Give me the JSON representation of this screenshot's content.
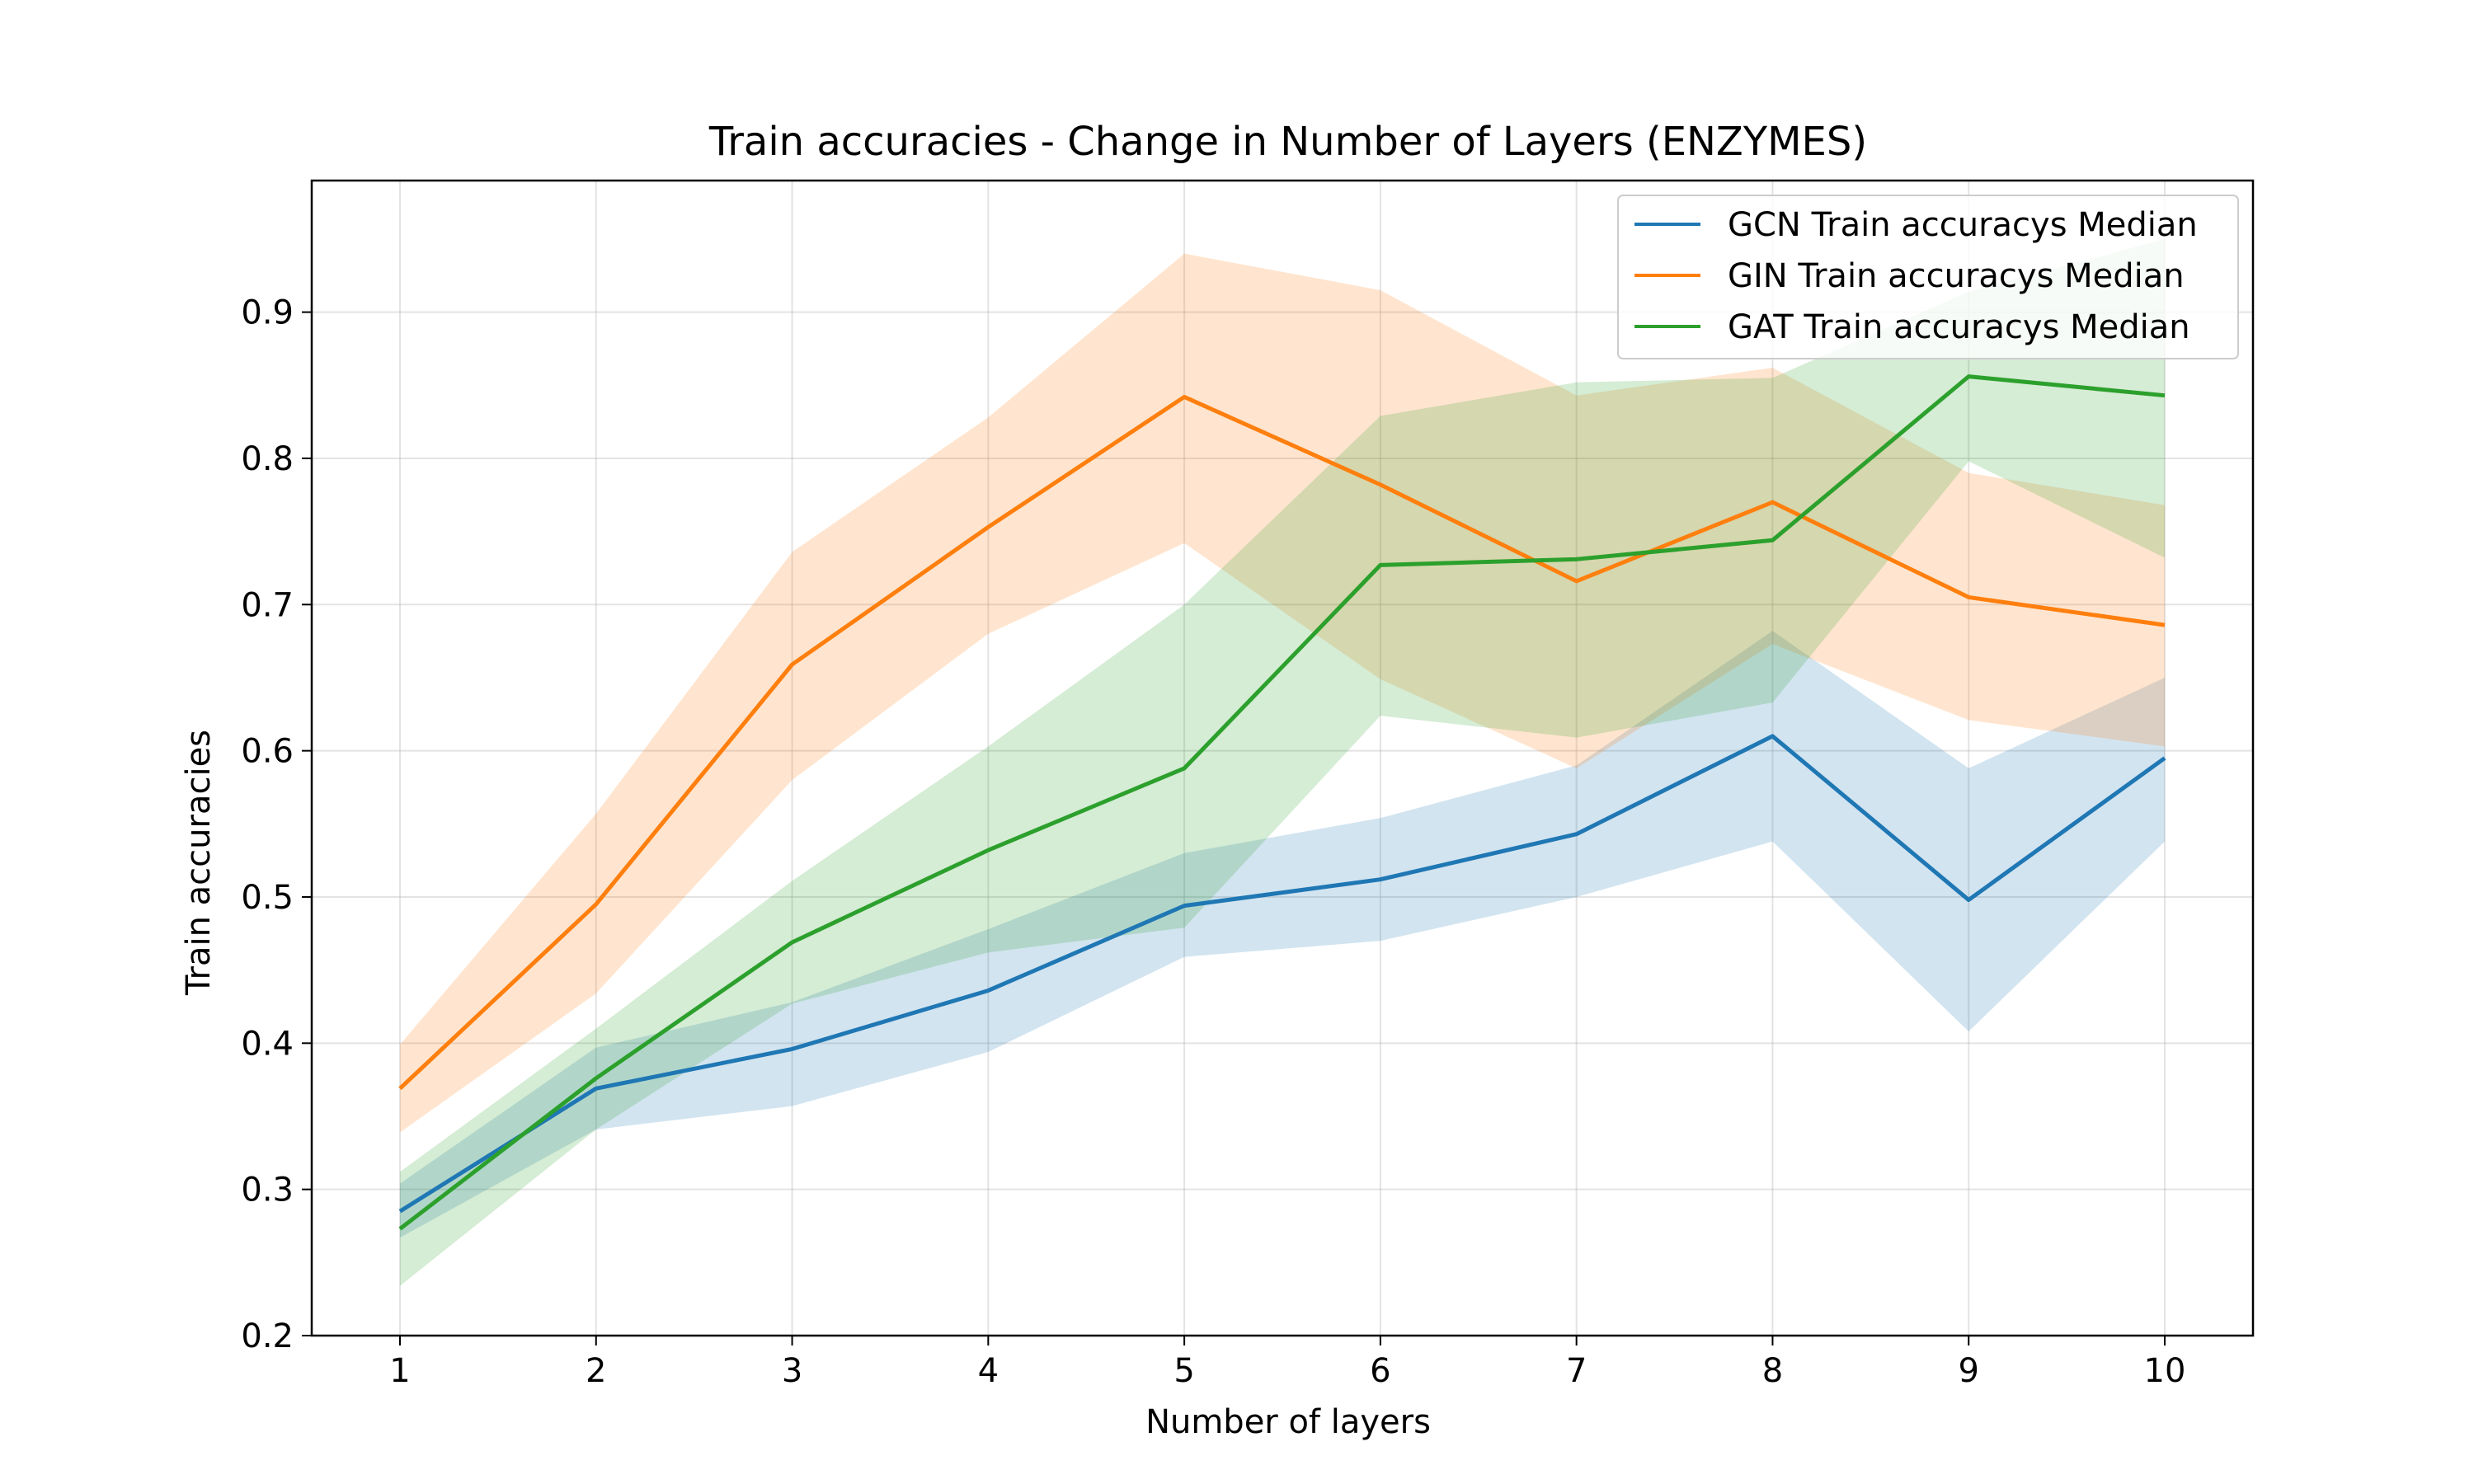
{
  "chart_data": {
    "type": "line",
    "title": "Train accuracies - Change in Number of Layers (ENZYMES)",
    "xlabel": "Number of layers",
    "ylabel": "Train accuracies",
    "xlim": [
      0.55,
      10.45
    ],
    "ylim": [
      0.2,
      0.99
    ],
    "x": [
      1,
      2,
      3,
      4,
      5,
      6,
      7,
      8,
      9,
      10
    ],
    "xticks": [
      "1",
      "2",
      "3",
      "4",
      "5",
      "6",
      "7",
      "8",
      "9",
      "10"
    ],
    "yticks": [
      "0.2",
      "0.3",
      "0.4",
      "0.5",
      "0.6",
      "0.7",
      "0.8",
      "0.9"
    ],
    "grid": true,
    "legend_position": "top-right",
    "series": [
      {
        "name": "GCN Train accuracys Median",
        "color": "#1f77b4",
        "values": [
          0.285,
          0.369,
          0.396,
          0.436,
          0.494,
          0.512,
          0.543,
          0.61,
          0.498,
          0.595
        ],
        "band_lower": [
          0.267,
          0.341,
          0.357,
          0.394,
          0.459,
          0.47,
          0.5,
          0.538,
          0.408,
          0.538
        ],
        "band_upper": [
          0.304,
          0.397,
          0.428,
          0.478,
          0.53,
          0.554,
          0.59,
          0.682,
          0.588,
          0.65
        ]
      },
      {
        "name": "GIN Train accuracys Median",
        "color": "#ff7f0e",
        "values": [
          0.369,
          0.495,
          0.659,
          0.753,
          0.842,
          0.782,
          0.716,
          0.77,
          0.705,
          0.686
        ],
        "band_lower": [
          0.339,
          0.434,
          0.58,
          0.68,
          0.742,
          0.649,
          0.588,
          0.673,
          0.621,
          0.603
        ],
        "band_upper": [
          0.399,
          0.557,
          0.736,
          0.828,
          0.94,
          0.915,
          0.843,
          0.862,
          0.79,
          0.768
        ]
      },
      {
        "name": "GAT Train accuracys Median",
        "color": "#2ca02c",
        "values": [
          0.273,
          0.376,
          0.469,
          0.532,
          0.588,
          0.727,
          0.731,
          0.744,
          0.856,
          0.843
        ],
        "band_lower": [
          0.234,
          0.341,
          0.427,
          0.462,
          0.479,
          0.624,
          0.609,
          0.633,
          0.798,
          0.732
        ],
        "band_upper": [
          0.312,
          0.41,
          0.511,
          0.603,
          0.7,
          0.829,
          0.852,
          0.855,
          0.914,
          0.95
        ]
      }
    ]
  }
}
